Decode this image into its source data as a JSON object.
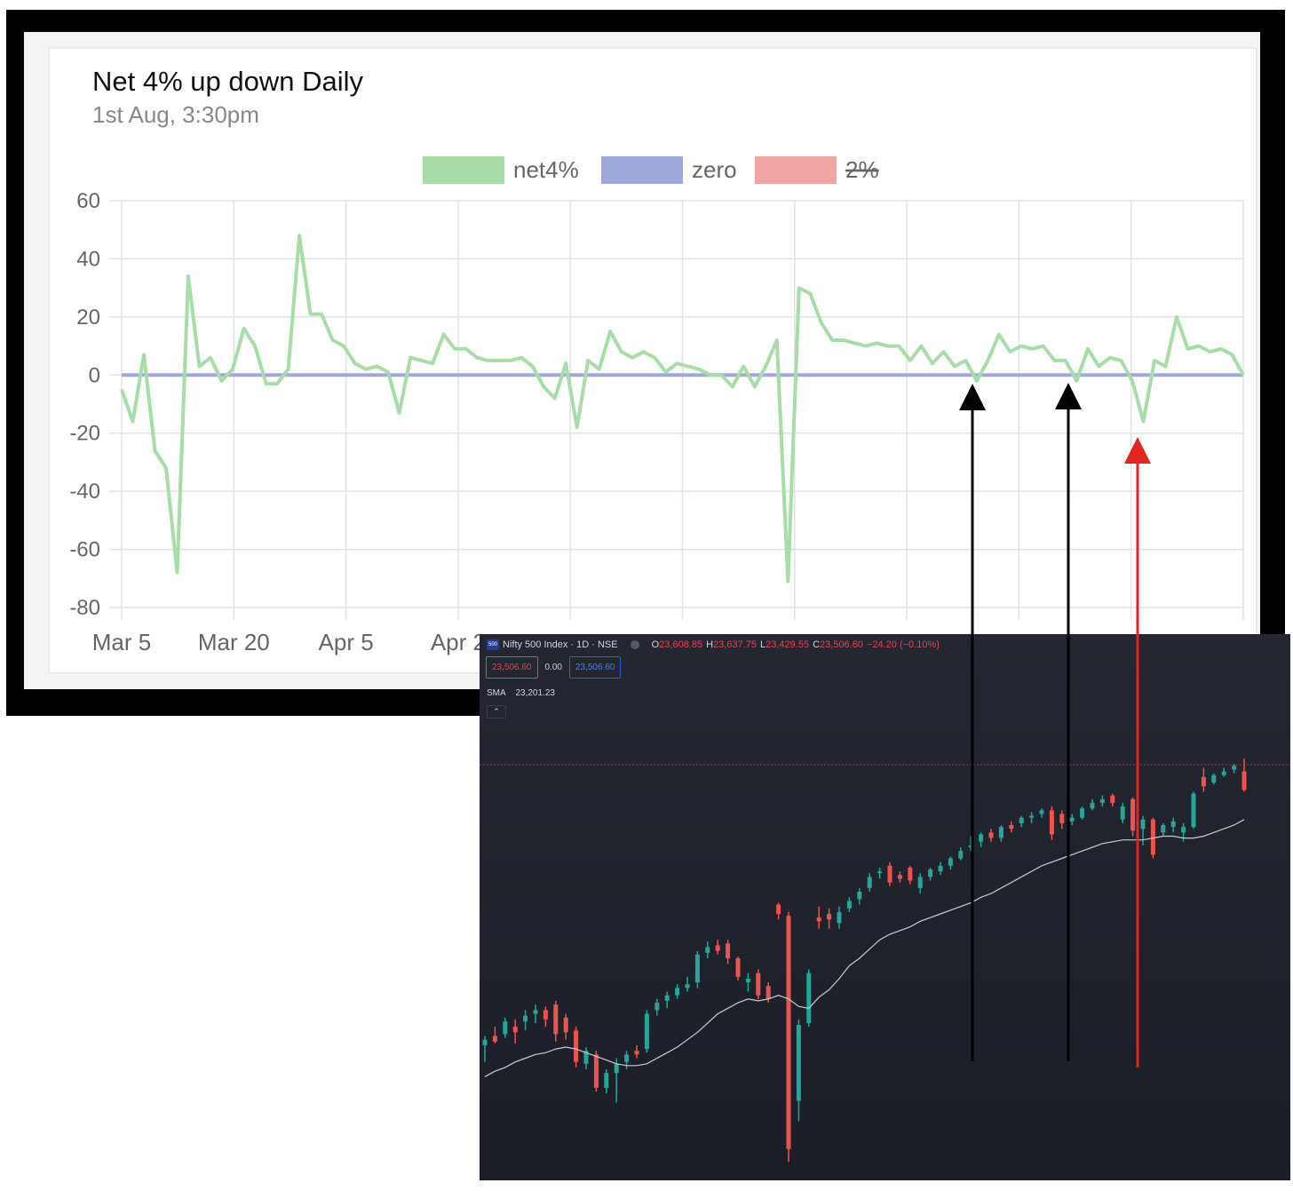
{
  "chart_data": [
    {
      "type": "line",
      "title": "Net 4% up down Daily",
      "subtitle": "1st Aug, 3:30pm",
      "legend": {
        "placement": "top",
        "entries": [
          {
            "name": "net4%",
            "color": "#a8dca9",
            "hidden": false
          },
          {
            "name": "zero",
            "color": "#9fa8dc",
            "hidden": false
          },
          {
            "name": "2%",
            "color": "#f0a4a4",
            "hidden": true
          }
        ]
      },
      "ylim": [
        -80,
        60
      ],
      "yticks": [
        "60",
        "40",
        "20",
        "0",
        "-20",
        "-40",
        "-60",
        "-80"
      ],
      "xticks": [
        "Mar 5",
        "Mar 20",
        "Apr 5",
        "Apr 2"
      ],
      "grid": true,
      "series": [
        {
          "name": "net4%",
          "color": "#a8dca9",
          "values": [
            -5,
            -16,
            7,
            -26,
            -32,
            -68,
            34,
            3,
            6,
            -2,
            2,
            16,
            10,
            -3,
            -3,
            2,
            48,
            21,
            21,
            12,
            10,
            4,
            2,
            3,
            1,
            -13,
            6,
            5,
            4,
            14,
            9,
            9,
            6,
            5,
            5,
            5,
            6,
            3,
            -4,
            -8,
            4,
            -18,
            5,
            2,
            15,
            8,
            6,
            8,
            6,
            1,
            4,
            3,
            2,
            0,
            0,
            -4,
            3,
            -4,
            3,
            12,
            -71,
            30,
            28,
            18,
            12,
            12,
            11,
            10,
            11,
            10,
            10,
            5,
            10,
            4,
            8,
            3,
            5,
            -2,
            5,
            14,
            8,
            10,
            9,
            10,
            5,
            5,
            -2,
            9,
            3,
            6,
            5,
            -2,
            -16,
            5,
            3,
            20,
            9,
            10,
            8,
            9,
            7,
            0
          ]
        },
        {
          "name": "zero",
          "color": "#9fa8dc",
          "values": [
            0,
            0
          ]
        }
      ]
    },
    {
      "type": "candlestick",
      "symbol": "Nifty 500 Index · 1D · NSE",
      "logo_text": "500",
      "ohlc": {
        "O": "23,608.85",
        "H": "23,637.75",
        "L": "23,429.55",
        "C": "23,506.60",
        "change": "−24.20 (−0.10%)"
      },
      "sell_price": "23,506.60",
      "spread": "0.00",
      "buy_price": "23,506.60",
      "indicator": {
        "name": "SMA",
        "value": "23,201.23"
      },
      "collapse_symbol": "⌃",
      "up_color": "#26a69a",
      "down_color": "#ef5350",
      "candles": [
        {
          "o": 22130,
          "h": 22180,
          "l": 22040,
          "c": 22160
        },
        {
          "o": 22180,
          "h": 22230,
          "l": 22140,
          "c": 22150
        },
        {
          "o": 22190,
          "h": 22280,
          "l": 22170,
          "c": 22260
        },
        {
          "o": 22230,
          "h": 22270,
          "l": 22140,
          "c": 22200
        },
        {
          "o": 22260,
          "h": 22320,
          "l": 22210,
          "c": 22290
        },
        {
          "o": 22300,
          "h": 22350,
          "l": 22250,
          "c": 22320
        },
        {
          "o": 22320,
          "h": 22340,
          "l": 22230,
          "c": 22270
        },
        {
          "o": 22350,
          "h": 22370,
          "l": 22150,
          "c": 22190
        },
        {
          "o": 22280,
          "h": 22300,
          "l": 22160,
          "c": 22200
        },
        {
          "o": 22210,
          "h": 22230,
          "l": 22010,
          "c": 22040
        },
        {
          "o": 22030,
          "h": 22120,
          "l": 22000,
          "c": 22100
        },
        {
          "o": 22080,
          "h": 22100,
          "l": 21880,
          "c": 21900
        },
        {
          "o": 21900,
          "h": 22000,
          "l": 21870,
          "c": 21980
        },
        {
          "o": 21980,
          "h": 22060,
          "l": 21820,
          "c": 22030
        },
        {
          "o": 22040,
          "h": 22100,
          "l": 22000,
          "c": 22080
        },
        {
          "o": 22100,
          "h": 22130,
          "l": 22060,
          "c": 22080
        },
        {
          "o": 22110,
          "h": 22320,
          "l": 22090,
          "c": 22300
        },
        {
          "o": 22320,
          "h": 22380,
          "l": 22290,
          "c": 22360
        },
        {
          "o": 22370,
          "h": 22420,
          "l": 22330,
          "c": 22400
        },
        {
          "o": 22400,
          "h": 22460,
          "l": 22380,
          "c": 22440
        },
        {
          "o": 22440,
          "h": 22500,
          "l": 22420,
          "c": 22460
        },
        {
          "o": 22470,
          "h": 22640,
          "l": 22440,
          "c": 22620
        },
        {
          "o": 22630,
          "h": 22690,
          "l": 22600,
          "c": 22660
        },
        {
          "o": 22670,
          "h": 22700,
          "l": 22620,
          "c": 22640
        },
        {
          "o": 22680,
          "h": 22700,
          "l": 22570,
          "c": 22600
        },
        {
          "o": 22600,
          "h": 22610,
          "l": 22480,
          "c": 22500
        },
        {
          "o": 22470,
          "h": 22520,
          "l": 22420,
          "c": 22490
        },
        {
          "o": 22520,
          "h": 22540,
          "l": 22380,
          "c": 22400
        },
        {
          "o": 22450,
          "h": 22470,
          "l": 22360,
          "c": 22380
        },
        {
          "o": 22890,
          "h": 22900,
          "l": 22810,
          "c": 22840
        },
        {
          "o": 22830,
          "h": 22850,
          "l": 21500,
          "c": 21570
        },
        {
          "o": 21830,
          "h": 22270,
          "l": 21720,
          "c": 22240
        },
        {
          "o": 22250,
          "h": 22540,
          "l": 22230,
          "c": 22520
        },
        {
          "o": 22820,
          "h": 22880,
          "l": 22760,
          "c": 22800
        },
        {
          "o": 22840,
          "h": 22870,
          "l": 22760,
          "c": 22810
        },
        {
          "o": 22790,
          "h": 22880,
          "l": 22760,
          "c": 22850
        },
        {
          "o": 22870,
          "h": 22930,
          "l": 22850,
          "c": 22910
        },
        {
          "o": 22920,
          "h": 22980,
          "l": 22890,
          "c": 22960
        },
        {
          "o": 22980,
          "h": 23060,
          "l": 22960,
          "c": 23040
        },
        {
          "o": 23060,
          "h": 23090,
          "l": 23030,
          "c": 23070
        },
        {
          "o": 23100,
          "h": 23120,
          "l": 22990,
          "c": 23010
        },
        {
          "o": 23050,
          "h": 23070,
          "l": 23010,
          "c": 23030
        },
        {
          "o": 23090,
          "h": 23100,
          "l": 23000,
          "c": 23020
        },
        {
          "o": 22980,
          "h": 23060,
          "l": 22950,
          "c": 23040
        },
        {
          "o": 23040,
          "h": 23090,
          "l": 23020,
          "c": 23080
        },
        {
          "o": 23070,
          "h": 23120,
          "l": 23050,
          "c": 23100
        },
        {
          "o": 23100,
          "h": 23150,
          "l": 23080,
          "c": 23140
        },
        {
          "o": 23140,
          "h": 23200,
          "l": 23130,
          "c": 23180
        },
        {
          "o": 23200,
          "h": 23260,
          "l": 23180,
          "c": 23210
        },
        {
          "o": 23230,
          "h": 23280,
          "l": 23200,
          "c": 23270
        },
        {
          "o": 23280,
          "h": 23300,
          "l": 23230,
          "c": 23250
        },
        {
          "o": 23250,
          "h": 23320,
          "l": 23230,
          "c": 23310
        },
        {
          "o": 23320,
          "h": 23340,
          "l": 23280,
          "c": 23300
        },
        {
          "o": 23330,
          "h": 23370,
          "l": 23310,
          "c": 23360
        },
        {
          "o": 23360,
          "h": 23390,
          "l": 23330,
          "c": 23370
        },
        {
          "o": 23380,
          "h": 23410,
          "l": 23360,
          "c": 23400
        },
        {
          "o": 23400,
          "h": 23420,
          "l": 23240,
          "c": 23270
        },
        {
          "o": 23380,
          "h": 23400,
          "l": 23300,
          "c": 23330
        },
        {
          "o": 23340,
          "h": 23380,
          "l": 23320,
          "c": 23360
        },
        {
          "o": 23360,
          "h": 23420,
          "l": 23350,
          "c": 23410
        },
        {
          "o": 23410,
          "h": 23460,
          "l": 23400,
          "c": 23440
        },
        {
          "o": 23440,
          "h": 23480,
          "l": 23420,
          "c": 23460
        },
        {
          "o": 23480,
          "h": 23490,
          "l": 23420,
          "c": 23440
        },
        {
          "o": 23350,
          "h": 23440,
          "l": 23330,
          "c": 23420
        },
        {
          "o": 23460,
          "h": 23470,
          "l": 23260,
          "c": 23290
        },
        {
          "o": 23300,
          "h": 23370,
          "l": 23210,
          "c": 23350
        },
        {
          "o": 23350,
          "h": 23360,
          "l": 23140,
          "c": 23160
        },
        {
          "o": 23280,
          "h": 23330,
          "l": 23260,
          "c": 23320
        },
        {
          "o": 23310,
          "h": 23360,
          "l": 23280,
          "c": 23340
        },
        {
          "o": 23280,
          "h": 23330,
          "l": 23230,
          "c": 23310
        },
        {
          "o": 23310,
          "h": 23500,
          "l": 23300,
          "c": 23490
        },
        {
          "o": 23580,
          "h": 23630,
          "l": 23500,
          "c": 23530
        },
        {
          "o": 23550,
          "h": 23600,
          "l": 23540,
          "c": 23590
        },
        {
          "o": 23590,
          "h": 23630,
          "l": 23580,
          "c": 23610
        },
        {
          "o": 23620,
          "h": 23650,
          "l": 23600,
          "c": 23640
        },
        {
          "o": 23610,
          "h": 23680,
          "l": 23500,
          "c": 23510
        }
      ],
      "sma": [
        21960,
        21990,
        22010,
        22040,
        22060,
        22080,
        22090,
        22110,
        22120,
        22110,
        22090,
        22070,
        22050,
        22030,
        22020,
        22020,
        22030,
        22060,
        22090,
        22120,
        22160,
        22200,
        22250,
        22300,
        22330,
        22360,
        22380,
        22370,
        22380,
        22400,
        22380,
        22340,
        22330,
        22390,
        22430,
        22490,
        22560,
        22600,
        22650,
        22700,
        22730,
        22750,
        22770,
        22800,
        22820,
        22840,
        22860,
        22880,
        22900,
        22930,
        22950,
        22980,
        23010,
        23040,
        23070,
        23100,
        23120,
        23140,
        23160,
        23180,
        23200,
        23220,
        23230,
        23240,
        23240,
        23240,
        23250,
        23260,
        23260,
        23250,
        23250,
        23260,
        23280,
        23300,
        23320,
        23350
      ]
    }
  ]
}
